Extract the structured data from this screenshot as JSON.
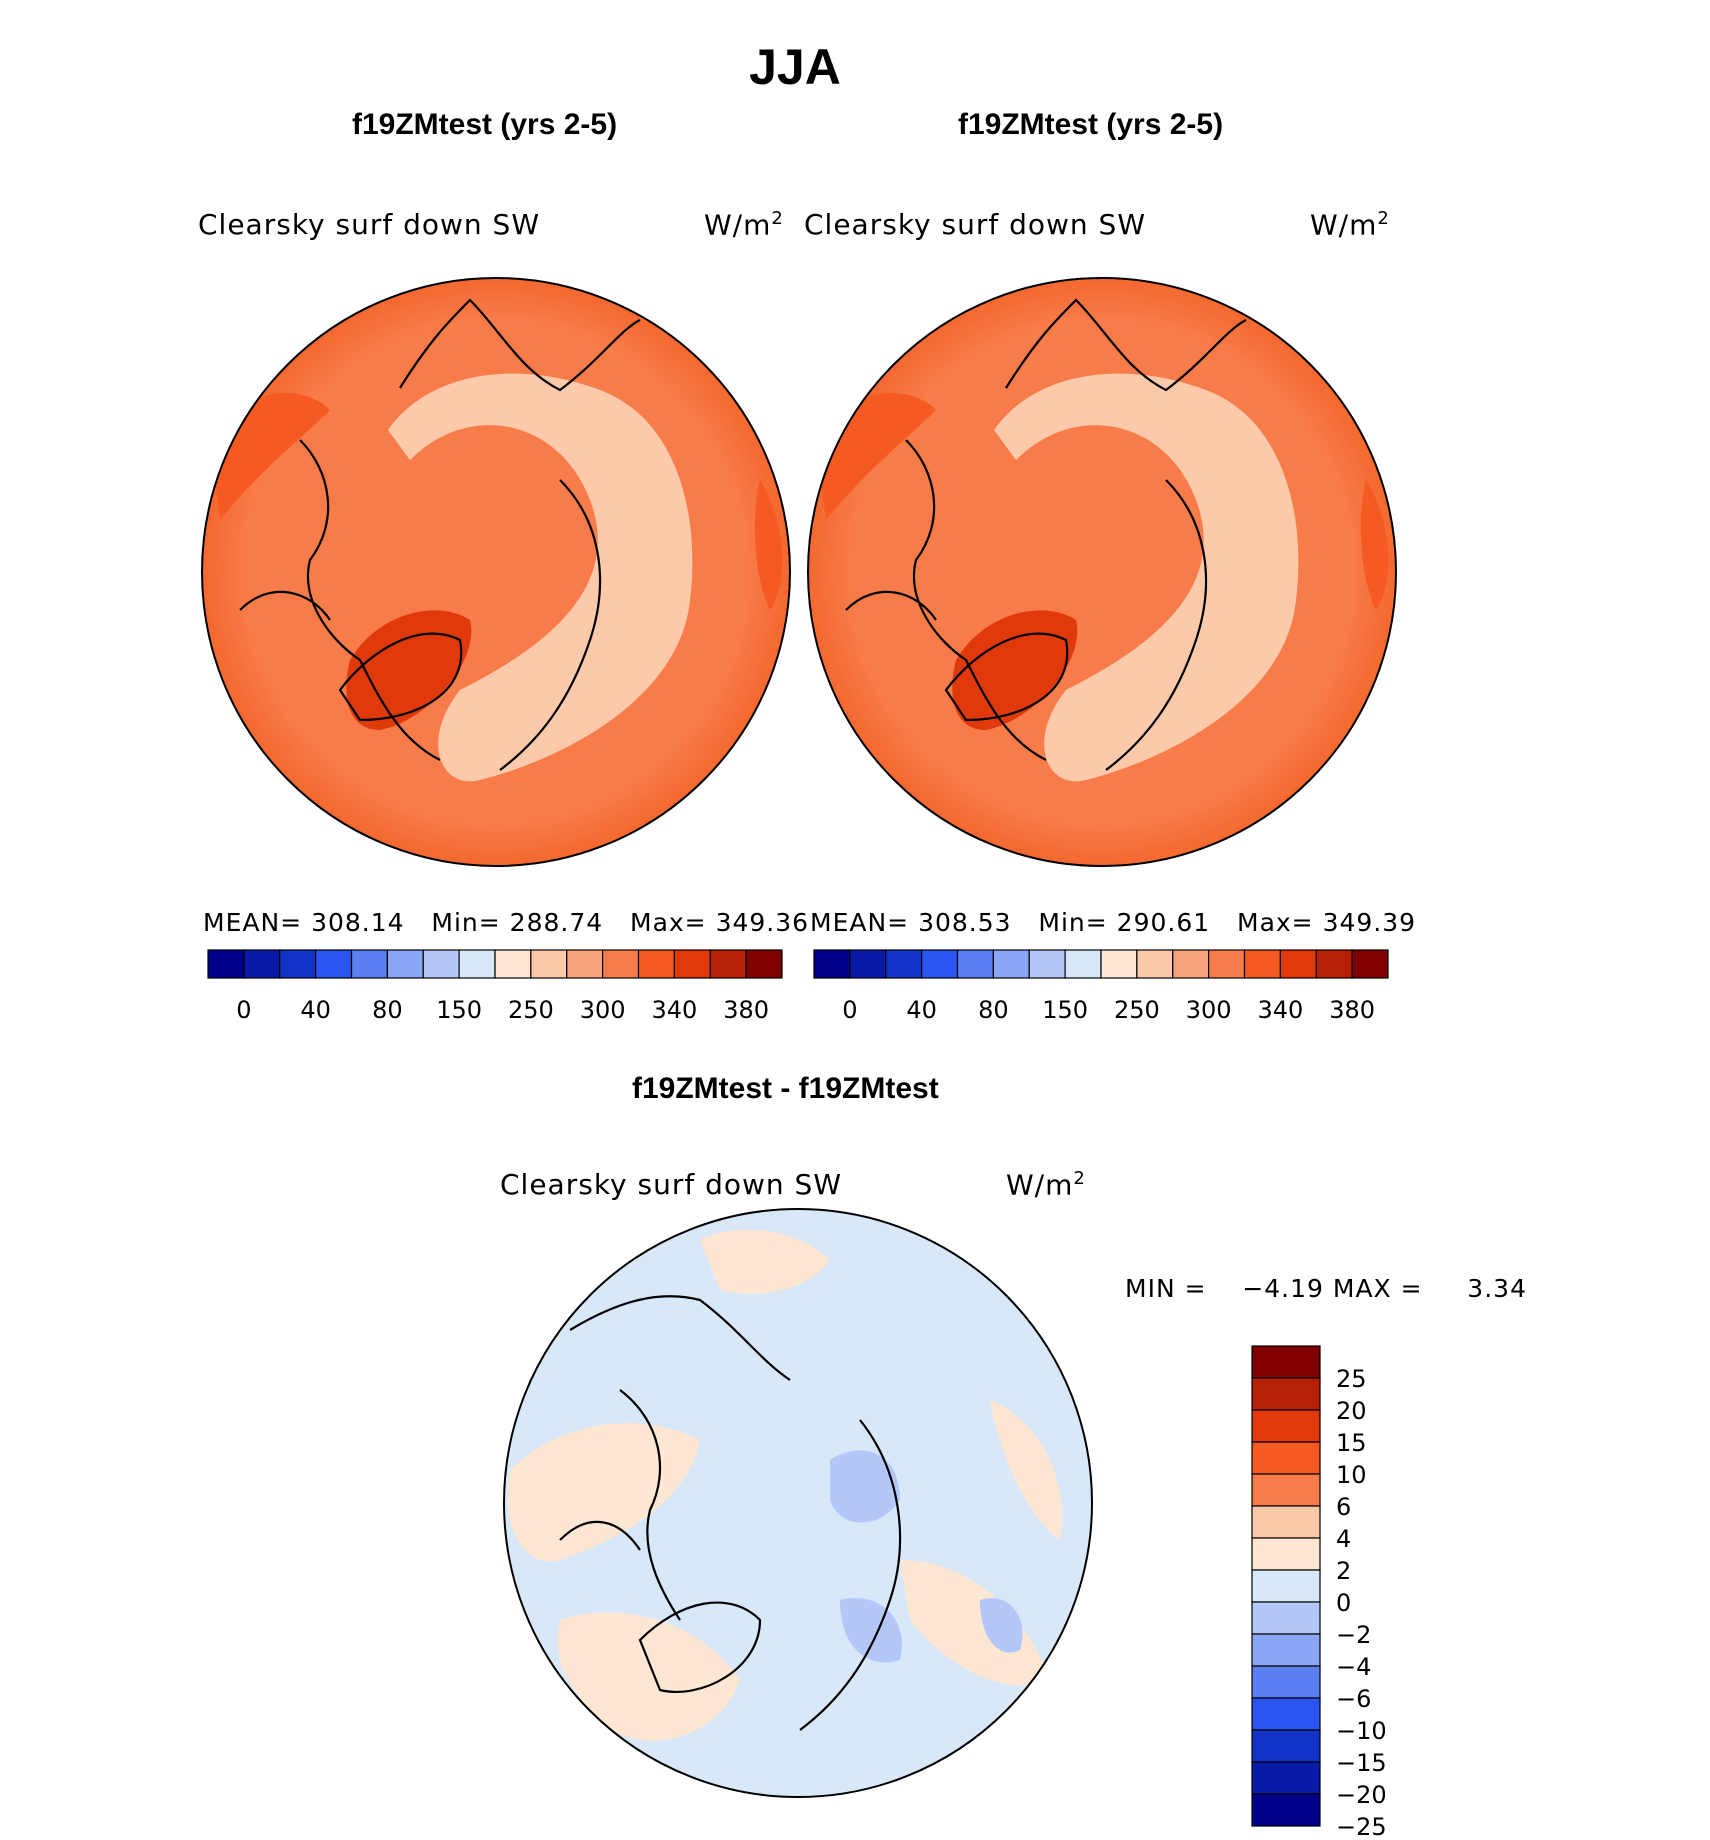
{
  "title": "JJA",
  "panels": [
    {
      "case_title": "f19ZMtest (yrs 2-5)",
      "variable": "Clearsky surf down SW",
      "units_base": "W/m",
      "units_exp": "2",
      "stats": {
        "mean_label": "MEAN=",
        "mean": "308.14",
        "min_label": "Min=",
        "min": "288.74",
        "max_label": "Max=",
        "max": "349.36"
      }
    },
    {
      "case_title": "f19ZMtest (yrs 2-5)",
      "variable": "Clearsky surf down SW",
      "units_base": "W/m",
      "units_exp": "2",
      "stats": {
        "mean_label": "MEAN=",
        "mean": "308.53",
        "min_label": "Min=",
        "min": "290.61",
        "max_label": "Max=",
        "max": "349.39"
      }
    }
  ],
  "diff": {
    "case_title": "f19ZMtest - f19ZMtest",
    "variable": "Clearsky surf down SW",
    "units_base": "W/m",
    "units_exp": "2",
    "minmax_label": "MIN =    −4.19 MAX =     3.34"
  },
  "chart_data": [
    {
      "type": "heatmap",
      "projection": "north-polar-stereographic",
      "title": "f19ZMtest (yrs 2-5)",
      "variable": "Clearsky surf down SW",
      "units": "W/m2",
      "mean": 308.14,
      "min": 288.74,
      "max": 349.36,
      "colorbar": {
        "orientation": "horizontal",
        "levels": [
          0,
          40,
          80,
          150,
          250,
          300,
          340,
          380
        ],
        "colors": [
          "#00008b",
          "#0a1aa8",
          "#1233c8",
          "#2a55f0",
          "#5a7ff2",
          "#8aa7f6",
          "#b3c8f8",
          "#d8e8f8",
          "#fde7d3",
          "#fcc9ab",
          "#f9a47c",
          "#f77c4a",
          "#f45a22",
          "#e03a0c",
          "#b52006",
          "#800000"
        ]
      }
    },
    {
      "type": "heatmap",
      "projection": "north-polar-stereographic",
      "title": "f19ZMtest (yrs 2-5)",
      "variable": "Clearsky surf down SW",
      "units": "W/m2",
      "mean": 308.53,
      "min": 290.61,
      "max": 349.39,
      "colorbar": {
        "orientation": "horizontal",
        "levels": [
          0,
          40,
          80,
          150,
          250,
          300,
          340,
          380
        ],
        "colors": [
          "#00008b",
          "#0a1aa8",
          "#1233c8",
          "#2a55f0",
          "#5a7ff2",
          "#8aa7f6",
          "#b3c8f8",
          "#d8e8f8",
          "#fde7d3",
          "#fcc9ab",
          "#f9a47c",
          "#f77c4a",
          "#f45a22",
          "#e03a0c",
          "#b52006",
          "#800000"
        ]
      }
    },
    {
      "type": "heatmap",
      "projection": "north-polar-stereographic",
      "title": "f19ZMtest - f19ZMtest",
      "variable": "Clearsky surf down SW",
      "units": "W/m2",
      "min": -4.19,
      "max": 3.34,
      "colorbar": {
        "orientation": "vertical",
        "levels": [
          "25",
          "20",
          "15",
          "10",
          "6",
          "4",
          "2",
          "0",
          "−2",
          "−4",
          "−6",
          "−10",
          "−15",
          "−20",
          "−25"
        ],
        "colors": [
          "#800000",
          "#b52006",
          "#e03a0c",
          "#f45a22",
          "#f77c4a",
          "#fcc9ab",
          "#fde7d3",
          "#d8e8f8",
          "#b3c8f8",
          "#8aa7f6",
          "#5a7ff2",
          "#2a55f0",
          "#1233c8",
          "#0a1aa8",
          "#00008b"
        ]
      }
    }
  ]
}
